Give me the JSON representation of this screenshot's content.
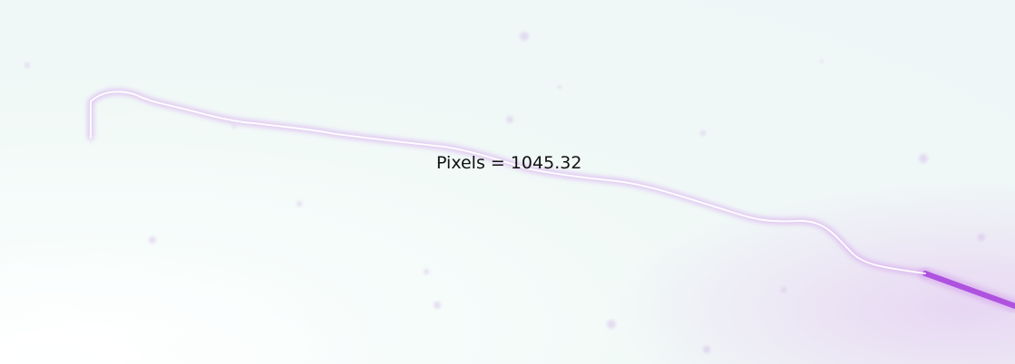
{
  "measurement": {
    "label": "Pixels = 1045.32"
  },
  "colors": {
    "background": "#f1f9f7",
    "background_bright": "#ffffff",
    "stain": "#c9a6e6",
    "fiber_glow": "#c77ce8",
    "fiber_dark": "#a63fdc",
    "trace": "#ffffff",
    "text": "#111111"
  }
}
